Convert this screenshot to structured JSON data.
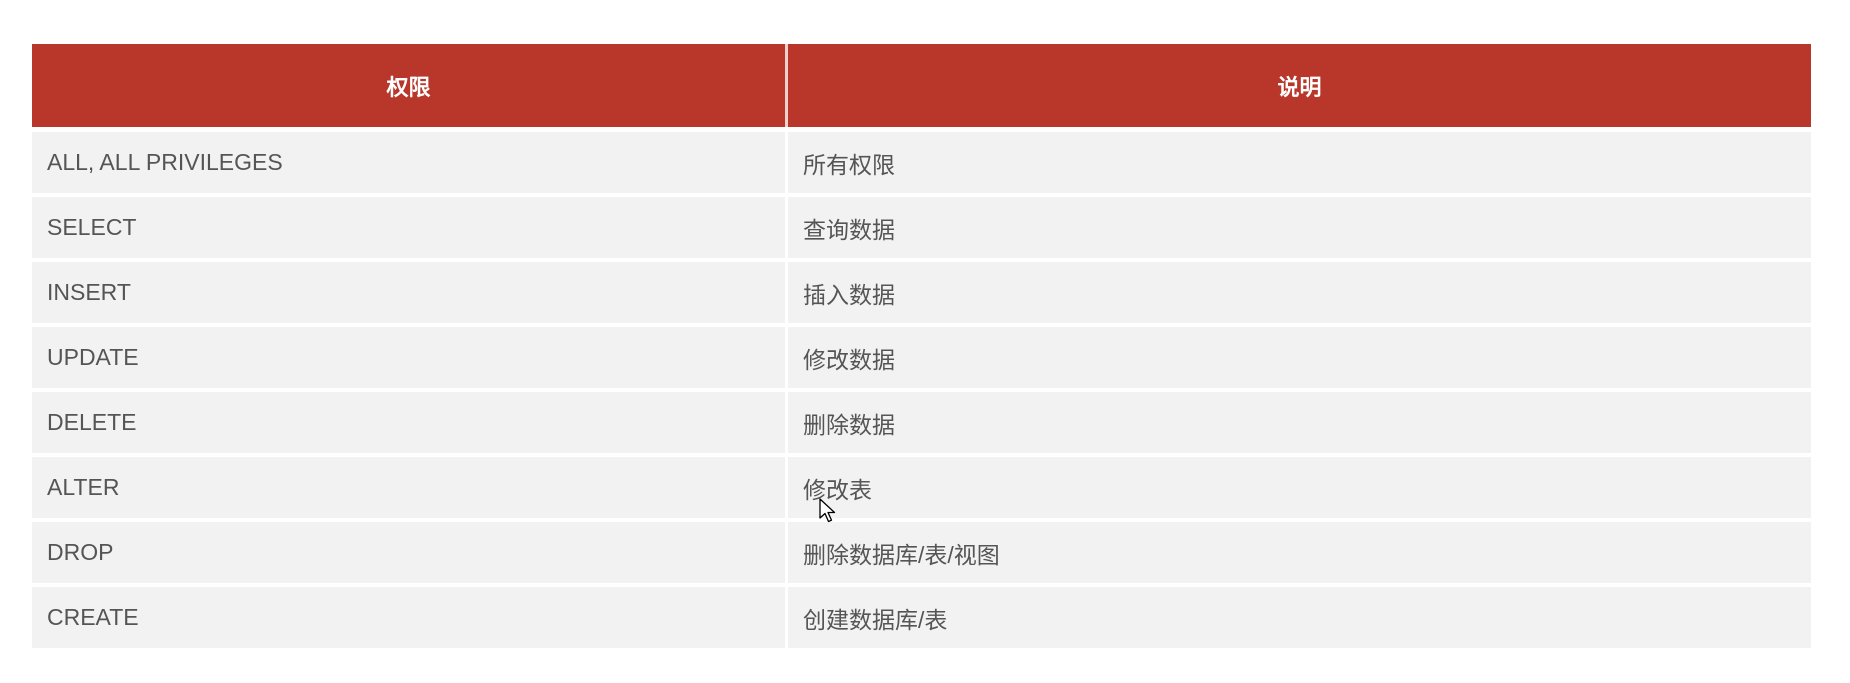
{
  "table": {
    "header_color": "#b8372a",
    "columns": [
      "权限",
      "说明"
    ],
    "rows": [
      [
        "ALL, ALL PRIVILEGES",
        "所有权限"
      ],
      [
        "SELECT",
        "查询数据"
      ],
      [
        "INSERT",
        "插入数据"
      ],
      [
        "UPDATE",
        "修改数据"
      ],
      [
        "DELETE",
        "删除数据"
      ],
      [
        "ALTER",
        "修改表"
      ],
      [
        "DROP",
        "删除数据库/表/视图"
      ],
      [
        "CREATE",
        "创建数据库/表"
      ]
    ]
  },
  "cursor_icon": "arrow-pointer"
}
